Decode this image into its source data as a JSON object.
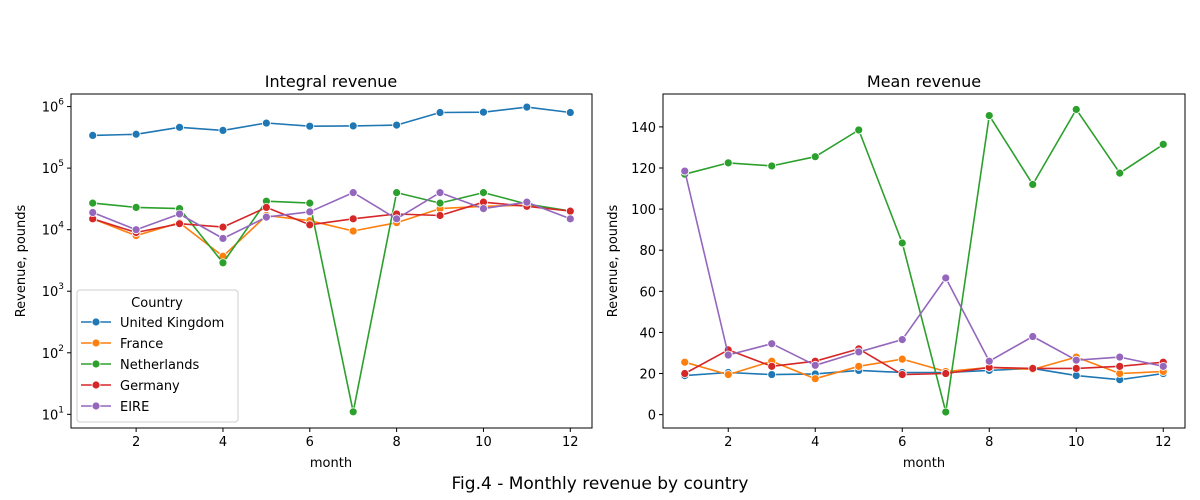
{
  "figure": {
    "caption": "Fig.4 - Monthly revenue by country"
  },
  "colors": {
    "United Kingdom": "#1f77b4",
    "France": "#ff7f0e",
    "Netherlands": "#2ca02c",
    "Germany": "#d62728",
    "EIRE": "#9467bd"
  },
  "chart_data": [
    {
      "type": "line",
      "title": "Integral revenue",
      "xlabel": "month",
      "ylabel": "Revenue, pounds",
      "yscale": "log",
      "xlim": [
        0.5,
        12.5
      ],
      "ylim": [
        6,
        1600000
      ],
      "xticks": [
        2,
        4,
        6,
        8,
        10,
        12
      ],
      "yticks": [
        10,
        100,
        1000,
        10000,
        100000,
        1000000
      ],
      "ytick_labels": [
        [
          "10",
          "1"
        ],
        [
          "10",
          "2"
        ],
        [
          "10",
          "3"
        ],
        [
          "10",
          "4"
        ],
        [
          "10",
          "5"
        ],
        [
          "10",
          "6"
        ]
      ],
      "grid": false,
      "legend": {
        "title": "Country",
        "placement": "lower-left"
      },
      "x": [
        1,
        2,
        3,
        4,
        5,
        6,
        7,
        8,
        9,
        10,
        11,
        12
      ],
      "series": [
        {
          "name": "United Kingdom",
          "values": [
            340000,
            355000,
            460000,
            410000,
            540000,
            480000,
            485000,
            500000,
            800000,
            810000,
            980000,
            800000
          ]
        },
        {
          "name": "France",
          "values": [
            15000,
            8000,
            13000,
            3700,
            17000,
            14000,
            9500,
            13000,
            22000,
            24000,
            25000,
            20000
          ]
        },
        {
          "name": "Netherlands",
          "values": [
            27000,
            23000,
            22000,
            2900,
            29000,
            27000,
            11,
            40000,
            27000,
            40000,
            26000,
            20000
          ]
        },
        {
          "name": "Germany",
          "values": [
            15000,
            9000,
            12500,
            11000,
            23000,
            12000,
            15000,
            18000,
            17000,
            28000,
            24000,
            20000
          ]
        },
        {
          "name": "EIRE",
          "values": [
            19000,
            10000,
            18000,
            7200,
            16000,
            19500,
            40000,
            15000,
            40000,
            22000,
            28000,
            15000
          ]
        }
      ]
    },
    {
      "type": "line",
      "title": "Mean revenue",
      "xlabel": "month",
      "ylabel": "Revenue, pounds",
      "yscale": "linear",
      "xlim": [
        0.5,
        12.5
      ],
      "ylim": [
        -6.5,
        156
      ],
      "xticks": [
        2,
        4,
        6,
        8,
        10,
        12
      ],
      "yticks": [
        0,
        20,
        40,
        60,
        80,
        100,
        120,
        140
      ],
      "grid": false,
      "x": [
        1,
        2,
        3,
        4,
        5,
        6,
        7,
        8,
        9,
        10,
        11,
        12
      ],
      "series": [
        {
          "name": "United Kingdom",
          "values": [
            19,
            20.5,
            19.5,
            19.8,
            21.5,
            20.5,
            20.5,
            21.5,
            22.5,
            19,
            17,
            20
          ]
        },
        {
          "name": "France",
          "values": [
            25.5,
            19.5,
            26,
            17.5,
            23.5,
            27,
            21,
            23,
            22,
            28,
            20,
            21
          ]
        },
        {
          "name": "Netherlands",
          "values": [
            117,
            122.5,
            121,
            125.5,
            138.5,
            83.5,
            1.3,
            145.5,
            112,
            148.5,
            117.5,
            131.5
          ]
        },
        {
          "name": "Germany",
          "values": [
            20,
            31.5,
            23.5,
            26,
            32,
            19.5,
            20,
            23,
            22.5,
            22.5,
            23.5,
            25.5
          ]
        },
        {
          "name": "EIRE",
          "values": [
            118.5,
            29,
            34.5,
            24,
            30.5,
            36.5,
            66.5,
            26,
            38,
            26.5,
            28,
            23.5
          ]
        }
      ]
    }
  ]
}
